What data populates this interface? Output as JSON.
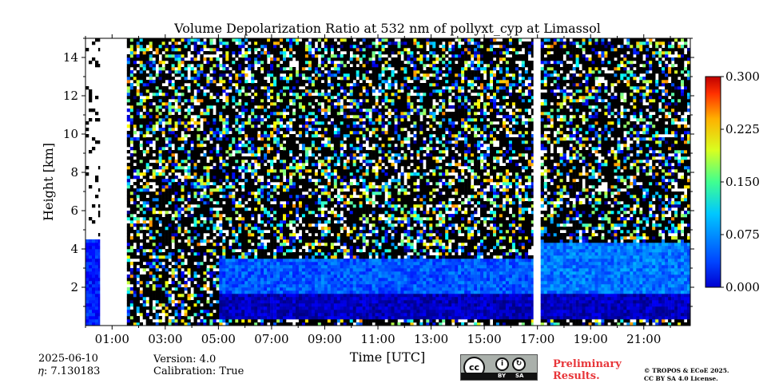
{
  "chart_data": {
    "type": "heatmap",
    "title": "Volume Depolarization Ratio at 532 nm of pollyxt_cyp at Limassol",
    "xlabel": "Time [UTC]",
    "ylabel": "Height [km]",
    "xlim": [
      0.0,
      22.75
    ],
    "ylim": [
      0.0,
      15.0
    ],
    "x_ticks": [
      {
        "value": 1,
        "label": "01:00"
      },
      {
        "value": 3,
        "label": "03:00"
      },
      {
        "value": 5,
        "label": "05:00"
      },
      {
        "value": 7,
        "label": "07:00"
      },
      {
        "value": 9,
        "label": "09:00"
      },
      {
        "value": 11,
        "label": "11:00"
      },
      {
        "value": 13,
        "label": "13:00"
      },
      {
        "value": 15,
        "label": "15:00"
      },
      {
        "value": 17,
        "label": "17:00"
      },
      {
        "value": 19,
        "label": "19:00"
      },
      {
        "value": 21,
        "label": "21:00"
      }
    ],
    "y_ticks": [
      {
        "value": 2,
        "label": "2"
      },
      {
        "value": 4,
        "label": "4"
      },
      {
        "value": 6,
        "label": "6"
      },
      {
        "value": 8,
        "label": "8"
      },
      {
        "value": 10,
        "label": "10"
      },
      {
        "value": 12,
        "label": "12"
      },
      {
        "value": 14,
        "label": "14"
      }
    ],
    "colorbar": {
      "min": 0.0,
      "max": 0.3,
      "ticks": [
        "0.000",
        "0.075",
        "0.150",
        "0.225",
        "0.300"
      ],
      "colormap": "jet"
    },
    "layers": [
      {
        "from_time": 5.0,
        "to_time": 22.75,
        "bottom_km": 0.2,
        "top_km": 1.6,
        "approx_ratio": 0.02
      },
      {
        "from_time": 5.0,
        "to_time": 16.8,
        "bottom_km": 1.6,
        "top_km": 3.4,
        "approx_ratio": 0.07
      },
      {
        "from_time": 16.8,
        "to_time": 22.75,
        "bottom_km": 1.6,
        "top_km": 4.2,
        "approx_ratio": 0.08
      },
      {
        "from_time": 0.0,
        "to_time": 0.6,
        "bottom_km": 0.0,
        "top_km": 4.5,
        "approx_ratio": 0.05
      }
    ],
    "no_data_periods": [
      {
        "from_time": 0.55,
        "to_time": 1.5
      },
      {
        "from_time": 16.85,
        "to_time": 17.05
      }
    ],
    "background": "noisy depolarization signal above aerosol layers up to 15 km"
  },
  "info": {
    "date": "2025-06-10",
    "eta": "𝜂: 7.130183",
    "version": "Version: 4.0",
    "calibration": "Calibration: True",
    "preliminary": [
      "Preliminary",
      "Results."
    ],
    "copyright": [
      "© TROPOS & ECoE 2025.",
      "CC BY SA 4.0 License."
    ]
  },
  "license_badge": {
    "logo": "cc",
    "by": "BY",
    "sa": "SA"
  }
}
